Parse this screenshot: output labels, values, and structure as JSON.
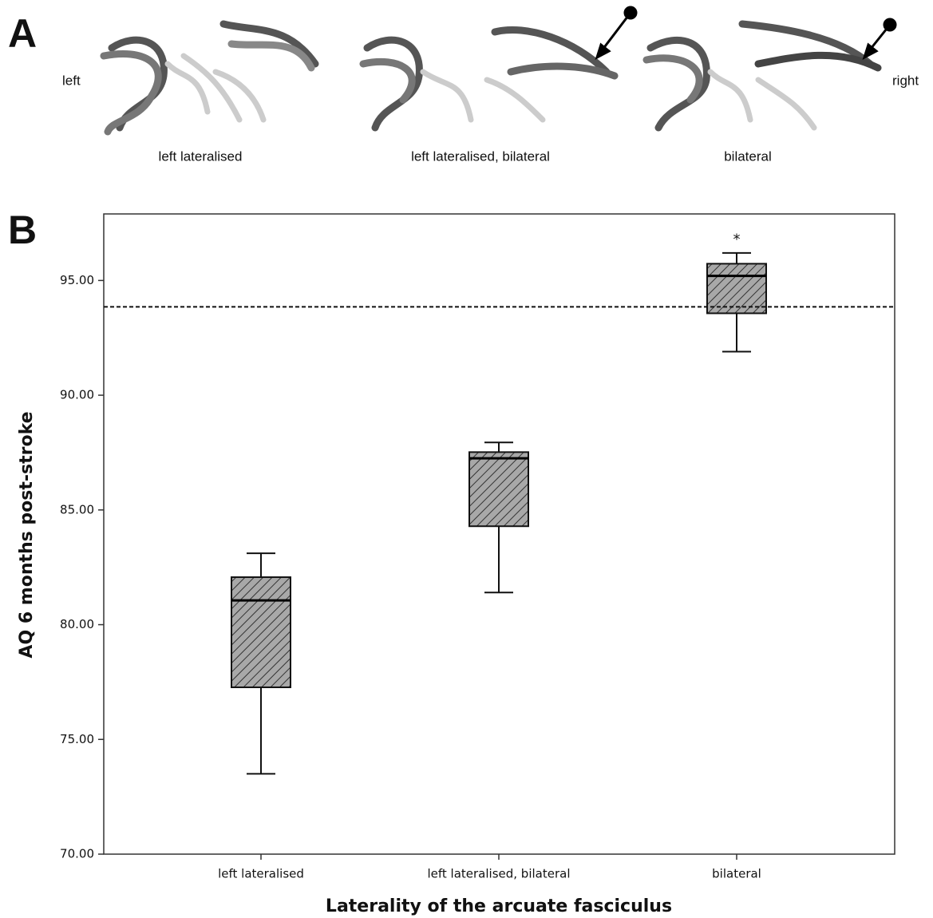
{
  "figure": {
    "panel_a_label": "A",
    "panel_b_label": "B",
    "left": "left",
    "right": "right",
    "captions": [
      "left lateralised",
      "left lateralised, bilateral",
      "bilateral"
    ]
  },
  "chart_data": {
    "type": "box",
    "x_label": "Laterality of the arcuate fasciculus",
    "y_label": "AQ 6 months post-stroke",
    "categories": [
      "left lateralised",
      "left lateralised, bilateral",
      "bilateral"
    ],
    "boxes": [
      {
        "min": 73.5,
        "q1": 77.27,
        "median": 81.06,
        "q3": 82.07,
        "max": 83.11
      },
      {
        "min": 81.4,
        "q1": 84.29,
        "median": 87.25,
        "q3": 87.52,
        "max": 87.94
      },
      {
        "min": 91.9,
        "q1": 93.57,
        "median": 95.2,
        "q3": 95.73,
        "max": 96.2
      }
    ],
    "outliers": [
      [],
      [],
      [
        96.9
      ]
    ],
    "outlier_marker": "*",
    "reference_line": 93.85,
    "color": "#9a9a9a",
    "ylim": [
      70,
      97.9
    ],
    "yticks": [
      {
        "value": 70,
        "label": "70.00"
      },
      {
        "value": 75,
        "label": "75.00"
      },
      {
        "value": 80,
        "label": "80.00"
      },
      {
        "value": 85,
        "label": "85.00"
      },
      {
        "value": 90,
        "label": "90.00"
      },
      {
        "value": 95,
        "label": "95.00"
      }
    ]
  }
}
